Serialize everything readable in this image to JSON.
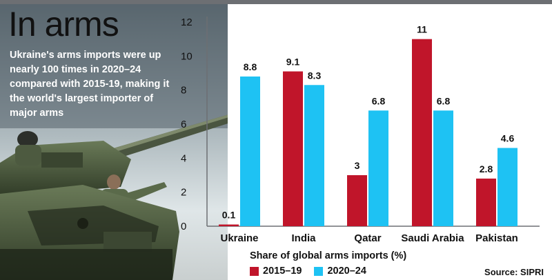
{
  "header": {
    "title": "In arms",
    "blurb": "Ukraine's arms imports were up nearly 100 times in 2020–24 compared with 2015-19, making it the world's largest importer of major arms"
  },
  "source": "Source: SIPRI",
  "colors": {
    "series_2015": "#c0152a",
    "series_2020": "#1ec2f3",
    "bar": "#6d6f73"
  },
  "chart_data": {
    "type": "bar",
    "categories": [
      "Ukraine",
      "India",
      "Qatar",
      "Saudi Arabia",
      "Pakistan"
    ],
    "series": [
      {
        "name": "2015–19",
        "values": [
          0.1,
          9.1,
          3,
          11,
          2.8
        ],
        "labels": [
          "0.1",
          "9.1",
          "3",
          "11",
          "2.8"
        ]
      },
      {
        "name": "2020–24",
        "values": [
          8.8,
          8.3,
          6.8,
          6.8,
          4.6
        ],
        "labels": [
          "8.8",
          "8.3",
          "6.8",
          "6.8",
          "4.6"
        ]
      }
    ],
    "xlabel": "Share of global arms imports (%)",
    "ylabel": "",
    "ylim": [
      0,
      12
    ],
    "yticks": [
      0,
      2,
      4,
      6,
      8,
      10,
      12
    ],
    "grid": false,
    "legend": "bottom"
  }
}
